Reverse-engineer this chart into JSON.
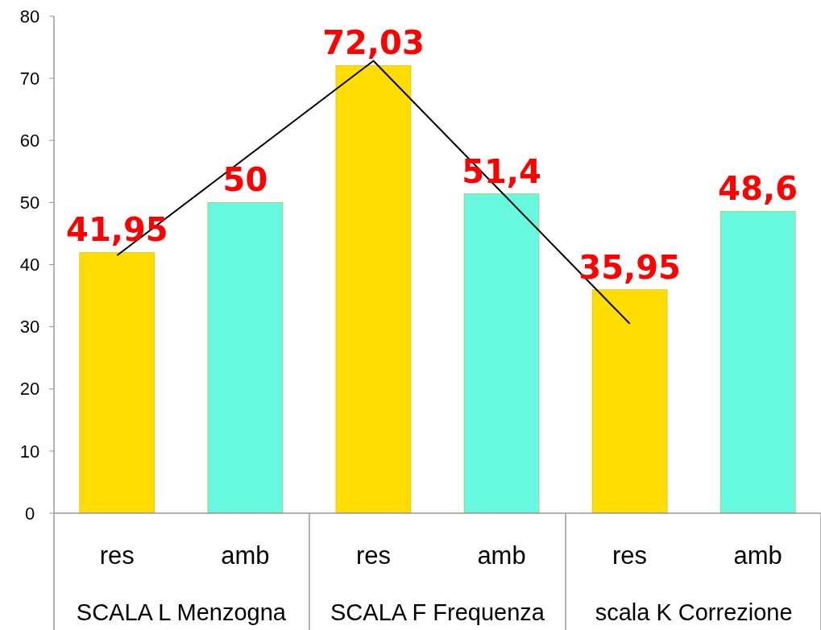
{
  "chart_data": {
    "type": "bar",
    "categories": [
      "res",
      "amb",
      "res",
      "amb",
      "res",
      "amb"
    ],
    "ylim": [
      0,
      80
    ],
    "yticks": [
      0,
      10,
      20,
      30,
      40,
      50,
      60,
      70,
      80
    ],
    "grid": false,
    "series": [
      {
        "colors": [
          "#ffdd00",
          "#66f9e0",
          "#ffdd00",
          "#66f9e0",
          "#ffdd00",
          "#66f9e0"
        ],
        "values": [
          41.95,
          50,
          72.03,
          51.4,
          35.95,
          48.6
        ],
        "value_labels": [
          "41,95",
          "50",
          "72,03",
          "51,4",
          "35,95",
          "48,6"
        ]
      },
      {
        "type": "line",
        "color": "#000000",
        "values": [
          41.5,
          null,
          72.8,
          null,
          30.5,
          null
        ]
      }
    ],
    "annotations": [
      "SCALA L Menzogna",
      "SCALA F Frequenza",
      "scala K Correzione"
    ]
  }
}
